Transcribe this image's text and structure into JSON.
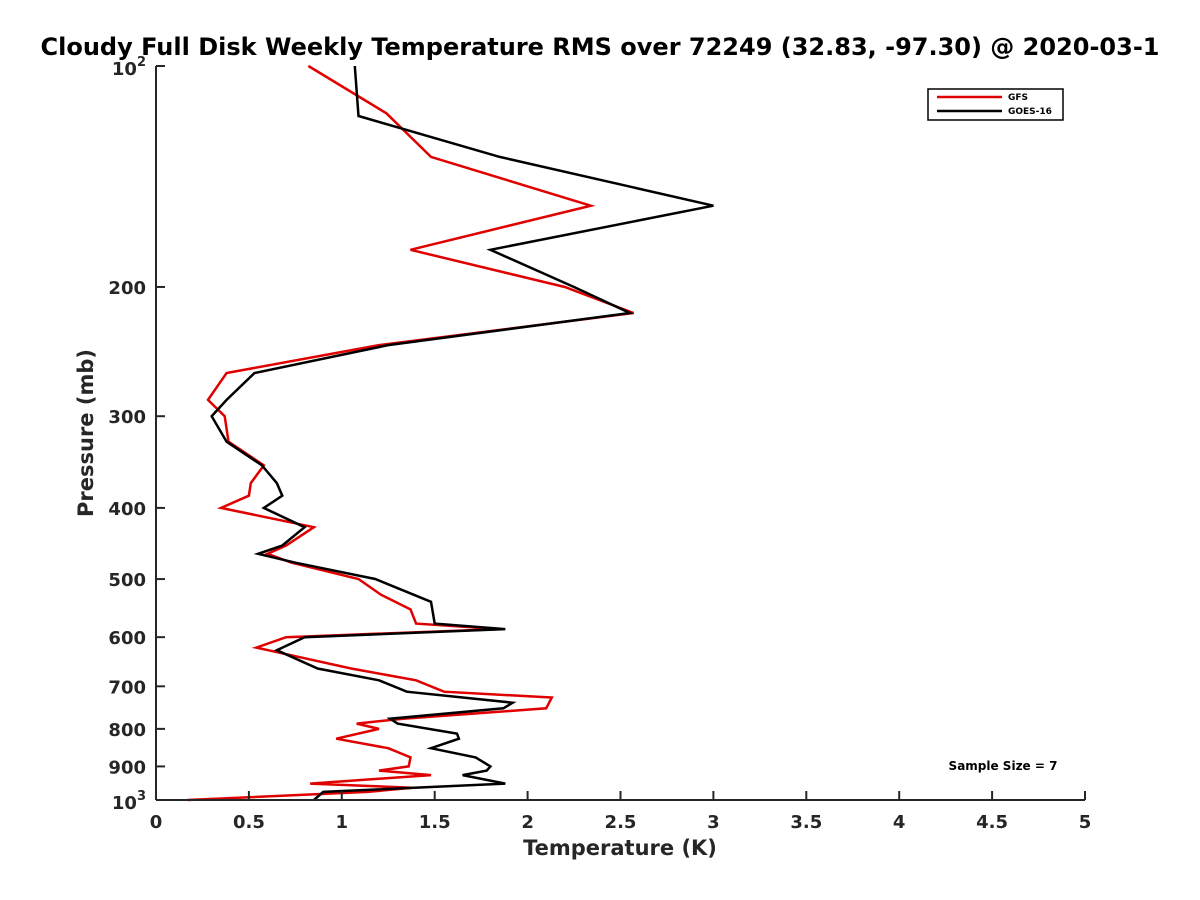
{
  "chart_data": {
    "type": "line",
    "title": "Cloudy Full Disk Weekly Temperature RMS over 72249 (32.83, -97.30) @ 2020-03-1",
    "xlabel": "Temperature (K)",
    "ylabel": "Pressure (mb)",
    "xlim": [
      0,
      5
    ],
    "ylim": [
      100,
      1000
    ],
    "yscale": "log",
    "y_reversed": true,
    "grid": false,
    "legend_position": "top-right",
    "x_ticks": [
      "0",
      "0.5",
      "1",
      "1.5",
      "2",
      "2.5",
      "3",
      "3.5",
      "4",
      "4.5",
      "5"
    ],
    "y_ticks": [
      {
        "value": 100,
        "base": "10",
        "exp": "2"
      },
      {
        "value": 200,
        "label": "200"
      },
      {
        "value": 300,
        "label": "300"
      },
      {
        "value": 400,
        "label": "400"
      },
      {
        "value": 500,
        "label": "500"
      },
      {
        "value": 600,
        "label": "600"
      },
      {
        "value": 700,
        "label": "700"
      },
      {
        "value": 800,
        "label": "800"
      },
      {
        "value": 900,
        "label": "900"
      },
      {
        "value": 1000,
        "base": "10",
        "exp": "3"
      }
    ],
    "annotation": "Sample Size = 7",
    "series": [
      {
        "name": "GFS",
        "color": "#e00000",
        "points": [
          {
            "x": 0.82,
            "y": 100
          },
          {
            "x": 1.24,
            "y": 116
          },
          {
            "x": 1.48,
            "y": 133
          },
          {
            "x": 2.34,
            "y": 155
          },
          {
            "x": 1.37,
            "y": 178
          },
          {
            "x": 2.2,
            "y": 200
          },
          {
            "x": 2.57,
            "y": 217
          },
          {
            "x": 1.2,
            "y": 240
          },
          {
            "x": 0.38,
            "y": 262
          },
          {
            "x": 0.28,
            "y": 285
          },
          {
            "x": 0.37,
            "y": 300
          },
          {
            "x": 0.39,
            "y": 325
          },
          {
            "x": 0.58,
            "y": 350
          },
          {
            "x": 0.51,
            "y": 370
          },
          {
            "x": 0.5,
            "y": 385
          },
          {
            "x": 0.35,
            "y": 400
          },
          {
            "x": 0.85,
            "y": 425
          },
          {
            "x": 0.7,
            "y": 450
          },
          {
            "x": 0.6,
            "y": 462
          },
          {
            "x": 0.73,
            "y": 475
          },
          {
            "x": 1.09,
            "y": 500
          },
          {
            "x": 1.21,
            "y": 525
          },
          {
            "x": 1.37,
            "y": 550
          },
          {
            "x": 1.4,
            "y": 575
          },
          {
            "x": 1.85,
            "y": 585
          },
          {
            "x": 0.7,
            "y": 600
          },
          {
            "x": 0.54,
            "y": 620
          },
          {
            "x": 0.75,
            "y": 637
          },
          {
            "x": 1.05,
            "y": 662
          },
          {
            "x": 1.4,
            "y": 687
          },
          {
            "x": 1.55,
            "y": 712
          },
          {
            "x": 2.13,
            "y": 725
          },
          {
            "x": 2.1,
            "y": 750
          },
          {
            "x": 1.33,
            "y": 775
          },
          {
            "x": 1.08,
            "y": 787
          },
          {
            "x": 1.2,
            "y": 800
          },
          {
            "x": 0.97,
            "y": 825
          },
          {
            "x": 1.25,
            "y": 850
          },
          {
            "x": 1.37,
            "y": 875
          },
          {
            "x": 1.36,
            "y": 900
          },
          {
            "x": 1.2,
            "y": 912
          },
          {
            "x": 1.48,
            "y": 925
          },
          {
            "x": 0.83,
            "y": 950
          },
          {
            "x": 1.38,
            "y": 962
          },
          {
            "x": 1.14,
            "y": 975
          },
          {
            "x": 0.17,
            "y": 1000
          }
        ]
      },
      {
        "name": "GOES-16",
        "color": "#000000",
        "points": [
          {
            "x": 1.07,
            "y": 100
          },
          {
            "x": 1.09,
            "y": 117
          },
          {
            "x": 1.85,
            "y": 133
          },
          {
            "x": 3.0,
            "y": 155
          },
          {
            "x": 1.8,
            "y": 178
          },
          {
            "x": 2.25,
            "y": 200
          },
          {
            "x": 2.55,
            "y": 217
          },
          {
            "x": 1.25,
            "y": 240
          },
          {
            "x": 0.53,
            "y": 262
          },
          {
            "x": 0.38,
            "y": 285
          },
          {
            "x": 0.3,
            "y": 300
          },
          {
            "x": 0.38,
            "y": 325
          },
          {
            "x": 0.57,
            "y": 350
          },
          {
            "x": 0.65,
            "y": 370
          },
          {
            "x": 0.68,
            "y": 385
          },
          {
            "x": 0.58,
            "y": 400
          },
          {
            "x": 0.8,
            "y": 425
          },
          {
            "x": 0.68,
            "y": 450
          },
          {
            "x": 0.55,
            "y": 462
          },
          {
            "x": 0.75,
            "y": 475
          },
          {
            "x": 1.18,
            "y": 500
          },
          {
            "x": 1.48,
            "y": 537
          },
          {
            "x": 1.5,
            "y": 575
          },
          {
            "x": 1.88,
            "y": 585
          },
          {
            "x": 0.8,
            "y": 600
          },
          {
            "x": 0.65,
            "y": 625
          },
          {
            "x": 0.87,
            "y": 662
          },
          {
            "x": 1.2,
            "y": 687
          },
          {
            "x": 1.35,
            "y": 712
          },
          {
            "x": 1.92,
            "y": 737
          },
          {
            "x": 1.87,
            "y": 750
          },
          {
            "x": 1.26,
            "y": 775
          },
          {
            "x": 1.3,
            "y": 787
          },
          {
            "x": 1.62,
            "y": 812
          },
          {
            "x": 1.63,
            "y": 825
          },
          {
            "x": 1.48,
            "y": 850
          },
          {
            "x": 1.72,
            "y": 875
          },
          {
            "x": 1.8,
            "y": 900
          },
          {
            "x": 1.78,
            "y": 912
          },
          {
            "x": 1.65,
            "y": 925
          },
          {
            "x": 1.88,
            "y": 950
          },
          {
            "x": 0.9,
            "y": 975
          },
          {
            "x": 0.85,
            "y": 1000
          }
        ]
      }
    ]
  }
}
